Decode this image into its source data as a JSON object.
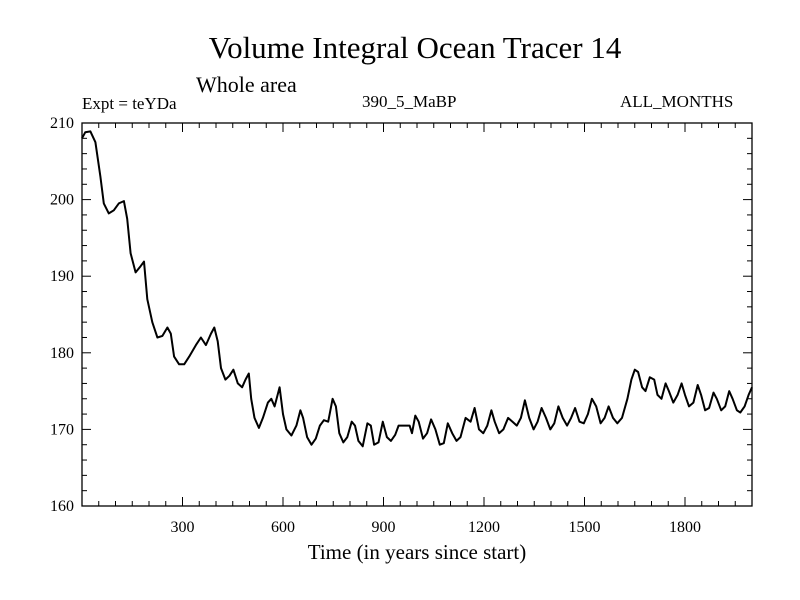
{
  "chart_data": {
    "type": "line",
    "title": "Volume Integral Ocean Tracer 14",
    "subtitle": "Whole area",
    "annotations": {
      "experiment": "Expt = teYDa",
      "run": "390_5_MaBP",
      "months": "ALL_MONTHS"
    },
    "xlabel": "Time (in years since start)",
    "ylabel": "",
    "xlim": [
      0,
      2000
    ],
    "ylim": [
      160,
      210
    ],
    "xticks": [
      300,
      600,
      900,
      1200,
      1500,
      1800
    ],
    "xtick_labels": [
      "300",
      "600",
      "900",
      "1200",
      "1500",
      "1800"
    ],
    "yticks": [
      160,
      170,
      180,
      190,
      200,
      210
    ],
    "ytick_labels": [
      "160",
      "170",
      "180",
      "190",
      "200",
      "210"
    ],
    "grid": false,
    "series": [
      {
        "name": "Volume Integral Ocean Tracer 14",
        "color": "#000000",
        "points": [
          [
            0,
            208.0
          ],
          [
            10,
            208.8
          ],
          [
            25,
            208.9
          ],
          [
            40,
            207.5
          ],
          [
            55,
            203.0
          ],
          [
            65,
            199.5
          ],
          [
            80,
            198.2
          ],
          [
            95,
            198.6
          ],
          [
            110,
            199.5
          ],
          [
            125,
            199.8
          ],
          [
            135,
            197.5
          ],
          [
            145,
            193.0
          ],
          [
            160,
            190.5
          ],
          [
            175,
            191.3
          ],
          [
            185,
            191.9
          ],
          [
            195,
            187.0
          ],
          [
            210,
            184.0
          ],
          [
            225,
            182.0
          ],
          [
            240,
            182.2
          ],
          [
            255,
            183.3
          ],
          [
            265,
            182.5
          ],
          [
            275,
            179.5
          ],
          [
            290,
            178.5
          ],
          [
            305,
            178.5
          ],
          [
            320,
            179.5
          ],
          [
            340,
            181.0
          ],
          [
            355,
            182.0
          ],
          [
            370,
            181.0
          ],
          [
            385,
            182.5
          ],
          [
            395,
            183.3
          ],
          [
            405,
            181.5
          ],
          [
            415,
            178.0
          ],
          [
            428,
            176.5
          ],
          [
            440,
            177.0
          ],
          [
            452,
            177.8
          ],
          [
            465,
            176.0
          ],
          [
            478,
            175.5
          ],
          [
            488,
            176.5
          ],
          [
            498,
            177.3
          ],
          [
            505,
            174.0
          ],
          [
            515,
            171.5
          ],
          [
            528,
            170.2
          ],
          [
            540,
            171.5
          ],
          [
            555,
            173.5
          ],
          [
            565,
            174.0
          ],
          [
            575,
            173.0
          ],
          [
            590,
            175.5
          ],
          [
            600,
            172.0
          ],
          [
            610,
            170.0
          ],
          [
            625,
            169.2
          ],
          [
            640,
            170.5
          ],
          [
            652,
            172.5
          ],
          [
            660,
            171.5
          ],
          [
            672,
            169.0
          ],
          [
            685,
            168.0
          ],
          [
            698,
            168.8
          ],
          [
            710,
            170.5
          ],
          [
            722,
            171.2
          ],
          [
            735,
            171.0
          ],
          [
            748,
            174.0
          ],
          [
            758,
            173.0
          ],
          [
            768,
            169.5
          ],
          [
            780,
            168.3
          ],
          [
            792,
            169.0
          ],
          [
            805,
            171.0
          ],
          [
            815,
            170.5
          ],
          [
            825,
            168.5
          ],
          [
            838,
            167.8
          ],
          [
            852,
            170.8
          ],
          [
            862,
            170.5
          ],
          [
            872,
            168.0
          ],
          [
            885,
            168.3
          ],
          [
            898,
            171.0
          ],
          [
            910,
            169.0
          ],
          [
            922,
            168.5
          ],
          [
            935,
            169.3
          ],
          [
            945,
            170.5
          ],
          [
            960,
            170.5
          ],
          [
            978,
            170.5
          ],
          [
            985,
            169.5
          ],
          [
            995,
            171.8
          ],
          [
            1005,
            171.0
          ],
          [
            1018,
            168.8
          ],
          [
            1030,
            169.5
          ],
          [
            1042,
            171.3
          ],
          [
            1055,
            170.0
          ],
          [
            1068,
            168.0
          ],
          [
            1080,
            168.2
          ],
          [
            1092,
            170.8
          ],
          [
            1105,
            169.5
          ],
          [
            1118,
            168.5
          ],
          [
            1130,
            169.0
          ],
          [
            1145,
            171.5
          ],
          [
            1160,
            171.0
          ],
          [
            1172,
            172.8
          ],
          [
            1185,
            170.0
          ],
          [
            1198,
            169.5
          ],
          [
            1210,
            170.5
          ],
          [
            1222,
            172.5
          ],
          [
            1232,
            171.0
          ],
          [
            1245,
            169.5
          ],
          [
            1258,
            170.0
          ],
          [
            1272,
            171.5
          ],
          [
            1285,
            171.0
          ],
          [
            1298,
            170.5
          ],
          [
            1310,
            171.5
          ],
          [
            1322,
            173.8
          ],
          [
            1335,
            171.5
          ],
          [
            1348,
            170.0
          ],
          [
            1360,
            171.0
          ],
          [
            1372,
            172.8
          ],
          [
            1385,
            171.5
          ],
          [
            1398,
            170.0
          ],
          [
            1410,
            170.8
          ],
          [
            1422,
            173.0
          ],
          [
            1435,
            171.5
          ],
          [
            1448,
            170.5
          ],
          [
            1460,
            171.5
          ],
          [
            1472,
            172.8
          ],
          [
            1485,
            171.0
          ],
          [
            1498,
            170.8
          ],
          [
            1510,
            172.0
          ],
          [
            1522,
            174.0
          ],
          [
            1535,
            173.0
          ],
          [
            1548,
            170.8
          ],
          [
            1560,
            171.5
          ],
          [
            1572,
            173.0
          ],
          [
            1585,
            171.5
          ],
          [
            1598,
            170.8
          ],
          [
            1612,
            171.5
          ],
          [
            1628,
            174.0
          ],
          [
            1640,
            176.5
          ],
          [
            1650,
            177.8
          ],
          [
            1660,
            177.5
          ],
          [
            1672,
            175.5
          ],
          [
            1682,
            175.0
          ],
          [
            1695,
            176.8
          ],
          [
            1708,
            176.5
          ],
          [
            1718,
            174.5
          ],
          [
            1730,
            174.0
          ],
          [
            1742,
            176.0
          ],
          [
            1752,
            175.0
          ],
          [
            1765,
            173.5
          ],
          [
            1778,
            174.5
          ],
          [
            1790,
            176.0
          ],
          [
            1800,
            174.5
          ],
          [
            1812,
            173.0
          ],
          [
            1825,
            173.5
          ],
          [
            1838,
            175.8
          ],
          [
            1848,
            174.5
          ],
          [
            1860,
            172.5
          ],
          [
            1872,
            172.8
          ],
          [
            1885,
            174.8
          ],
          [
            1895,
            174.0
          ],
          [
            1908,
            172.5
          ],
          [
            1920,
            173.0
          ],
          [
            1932,
            175.0
          ],
          [
            1942,
            174.0
          ],
          [
            1955,
            172.5
          ],
          [
            1965,
            172.2
          ],
          [
            1978,
            173.0
          ],
          [
            1990,
            174.5
          ],
          [
            2000,
            175.5
          ]
        ]
      }
    ]
  }
}
